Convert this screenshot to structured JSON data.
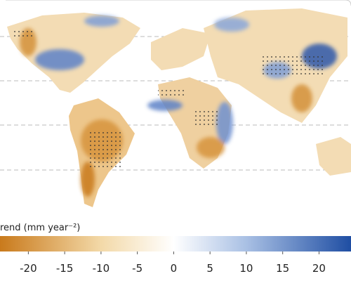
{
  "colorbar": {
    "label": "rend (mm year⁻²)",
    "lim": [
      -23.9,
      24.4
    ],
    "ticks": [
      -20,
      -15,
      -10,
      -5,
      0,
      5,
      10,
      15,
      20
    ],
    "colors": [
      "#c97a1c",
      "#f3d9a8",
      "#ffffff",
      "#a9c0e4",
      "#1f4ea3"
    ]
  }
}
